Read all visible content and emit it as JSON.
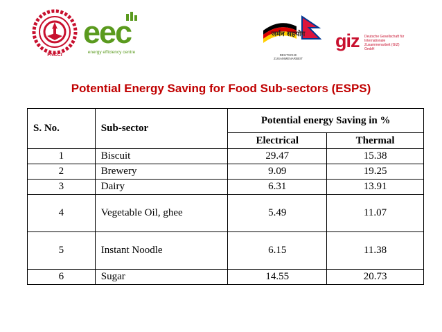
{
  "logos": {
    "fncci_label": "FNCCI",
    "eec_word": "eec",
    "eec_tagline": "energy efficiency centre",
    "partner_text": "जर्मन सहयोग",
    "partner_sub": "DEUTSCHE ZUSAMMENARBEIT",
    "giz_word": "giz",
    "giz_text": "Deutsche Gesellschaft für Internationale Zusammenarbeit (GIZ) GmbH"
  },
  "title": "Potential Energy Saving for Food Sub-sectors (ESPS)",
  "table": {
    "headers": {
      "sno": "S. No.",
      "subsector": "Sub-sector",
      "potential": "Potential energy Saving in %",
      "electrical": "Electrical",
      "thermal": "Thermal"
    },
    "rows": [
      {
        "sno": "1",
        "name": "Biscuit",
        "electrical": "29.47",
        "thermal": "15.38"
      },
      {
        "sno": "2",
        "name": "Brewery",
        "electrical": "9.09",
        "thermal": "19.25"
      },
      {
        "sno": "3",
        "name": "Dairy",
        "electrical": "6.31",
        "thermal": "13.91"
      },
      {
        "sno": "4",
        "name": "Vegetable Oil, ghee",
        "electrical": "5.49",
        "thermal": "11.07"
      },
      {
        "sno": "5",
        "name": "Instant Noodle",
        "electrical": "6.15",
        "thermal": "11.38"
      },
      {
        "sno": "6",
        "name": "Sugar",
        "electrical": "14.55",
        "thermal": "20.73"
      }
    ]
  },
  "colors": {
    "title": "#c00000",
    "eec_green": "#5a9a1e",
    "fncci_red": "#c8102e",
    "giz_red": "#c8102e"
  }
}
